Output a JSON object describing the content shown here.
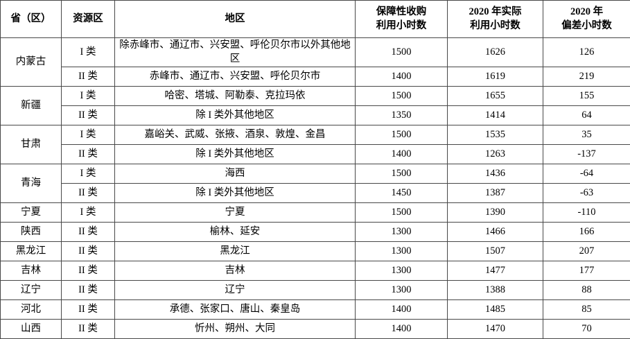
{
  "table": {
    "headers": [
      "省（区）",
      "资源区",
      "地区",
      "保障性收购\n利用小时数",
      "2020 年实际\n利用小时数",
      "2020 年\n偏差小时数"
    ],
    "rows": [
      {
        "province": "内蒙古",
        "province_rowspan": 2,
        "zone": "I 类",
        "region": "除赤峰市、通辽市、兴安盟、呼伦贝尔市以外其他地区",
        "guaranteed_hours": "1500",
        "actual_hours_2020": "1626",
        "deviation_hours_2020": "126"
      },
      {
        "zone": "II 类",
        "region": "赤峰市、通辽市、兴安盟、呼伦贝尔市",
        "guaranteed_hours": "1400",
        "actual_hours_2020": "1619",
        "deviation_hours_2020": "219"
      },
      {
        "province": "新疆",
        "province_rowspan": 2,
        "zone": "I 类",
        "region": "哈密、塔城、阿勒泰、克拉玛依",
        "guaranteed_hours": "1500",
        "actual_hours_2020": "1655",
        "deviation_hours_2020": "155"
      },
      {
        "zone": "II 类",
        "region": "除 I 类外其他地区",
        "guaranteed_hours": "1350",
        "actual_hours_2020": "1414",
        "deviation_hours_2020": "64"
      },
      {
        "province": "甘肃",
        "province_rowspan": 2,
        "zone": "I 类",
        "region": "嘉峪关、武威、张掖、酒泉、敦煌、金昌",
        "guaranteed_hours": "1500",
        "actual_hours_2020": "1535",
        "deviation_hours_2020": "35"
      },
      {
        "zone": "II 类",
        "region": "除 I 类外其他地区",
        "guaranteed_hours": "1400",
        "actual_hours_2020": "1263",
        "deviation_hours_2020": "-137"
      },
      {
        "province": "青海",
        "province_rowspan": 2,
        "zone": "I 类",
        "region": "海西",
        "guaranteed_hours": "1500",
        "actual_hours_2020": "1436",
        "deviation_hours_2020": "-64"
      },
      {
        "zone": "II 类",
        "region": "除 I 类外其他地区",
        "guaranteed_hours": "1450",
        "actual_hours_2020": "1387",
        "deviation_hours_2020": "-63"
      },
      {
        "province": "宁夏",
        "province_rowspan": 1,
        "zone": "I 类",
        "region": "宁夏",
        "guaranteed_hours": "1500",
        "actual_hours_2020": "1390",
        "deviation_hours_2020": "-110"
      },
      {
        "province": "陕西",
        "province_rowspan": 1,
        "zone": "II 类",
        "region": "榆林、延安",
        "guaranteed_hours": "1300",
        "actual_hours_2020": "1466",
        "deviation_hours_2020": "166"
      },
      {
        "province": "黑龙江",
        "province_rowspan": 1,
        "zone": "II 类",
        "region": "黑龙江",
        "guaranteed_hours": "1300",
        "actual_hours_2020": "1507",
        "deviation_hours_2020": "207"
      },
      {
        "province": "吉林",
        "province_rowspan": 1,
        "zone": "II 类",
        "region": "吉林",
        "guaranteed_hours": "1300",
        "actual_hours_2020": "1477",
        "deviation_hours_2020": "177"
      },
      {
        "province": "辽宁",
        "province_rowspan": 1,
        "zone": "II 类",
        "region": "辽宁",
        "guaranteed_hours": "1300",
        "actual_hours_2020": "1388",
        "deviation_hours_2020": "88"
      },
      {
        "province": "河北",
        "province_rowspan": 1,
        "zone": "II 类",
        "region": "承德、张家口、唐山、秦皇岛",
        "guaranteed_hours": "1400",
        "actual_hours_2020": "1485",
        "deviation_hours_2020": "85"
      },
      {
        "province": "山西",
        "province_rowspan": 1,
        "zone": "II 类",
        "region": "忻州、朔州、大同",
        "guaranteed_hours": "1400",
        "actual_hours_2020": "1470",
        "deviation_hours_2020": "70"
      }
    ]
  }
}
